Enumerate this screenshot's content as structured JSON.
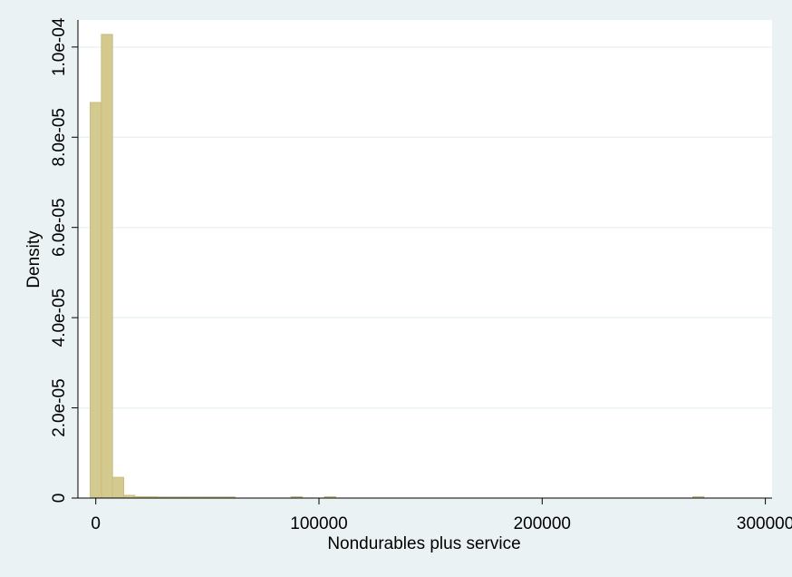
{
  "chart_data": {
    "type": "bar",
    "subtype": "histogram",
    "xlabel": "Nondurables plus service",
    "ylabel": "Density",
    "xlim": [
      -8000,
      303000
    ],
    "ylim": [
      0,
      0.000106
    ],
    "x_ticks": [
      {
        "value": 0,
        "label": "0"
      },
      {
        "value": 100000,
        "label": "100000"
      },
      {
        "value": 200000,
        "label": "200000"
      },
      {
        "value": 300000,
        "label": "300000"
      }
    ],
    "y_ticks": [
      {
        "value": 0,
        "label": "0"
      },
      {
        "value": 2e-05,
        "label": "2.0e-05"
      },
      {
        "value": 4e-05,
        "label": "4.0e-05"
      },
      {
        "value": 6e-05,
        "label": "6.0e-05"
      },
      {
        "value": 8e-05,
        "label": "8.0e-05"
      },
      {
        "value": 0.0001,
        "label": "1.0e-04"
      }
    ],
    "grid": true,
    "colors": {
      "background": "#eaf2f3",
      "plot_area": "#ffffff",
      "bar_fill": "#d4c98f",
      "bar_stroke": "#c8bd7f",
      "grid": "#eaf2f3"
    },
    "bins": [
      {
        "x0": -2500,
        "x1": 2500,
        "density": 8.77e-05
      },
      {
        "x0": 2500,
        "x1": 7500,
        "density": 0.0001028
      },
      {
        "x0": 7500,
        "x1": 12500,
        "density": 4.6e-06
      },
      {
        "x0": 12500,
        "x1": 17500,
        "density": 6e-07
      },
      {
        "x0": 17500,
        "x1": 22500,
        "density": 3e-07
      },
      {
        "x0": 22500,
        "x1": 27500,
        "density": 3e-07
      },
      {
        "x0": 27500,
        "x1": 32500,
        "density": 2e-07
      },
      {
        "x0": 32500,
        "x1": 37500,
        "density": 2e-07
      },
      {
        "x0": 37500,
        "x1": 42500,
        "density": 2e-07
      },
      {
        "x0": 42500,
        "x1": 47500,
        "density": 2e-07
      },
      {
        "x0": 47500,
        "x1": 52500,
        "density": 2e-07
      },
      {
        "x0": 52500,
        "x1": 57500,
        "density": 2e-07
      },
      {
        "x0": 57500,
        "x1": 62500,
        "density": 2e-07
      },
      {
        "x0": 87500,
        "x1": 92500,
        "density": 3e-07
      },
      {
        "x0": 102500,
        "x1": 107500,
        "density": 3e-07
      },
      {
        "x0": 267500,
        "x1": 272500,
        "density": 3e-07
      }
    ]
  }
}
